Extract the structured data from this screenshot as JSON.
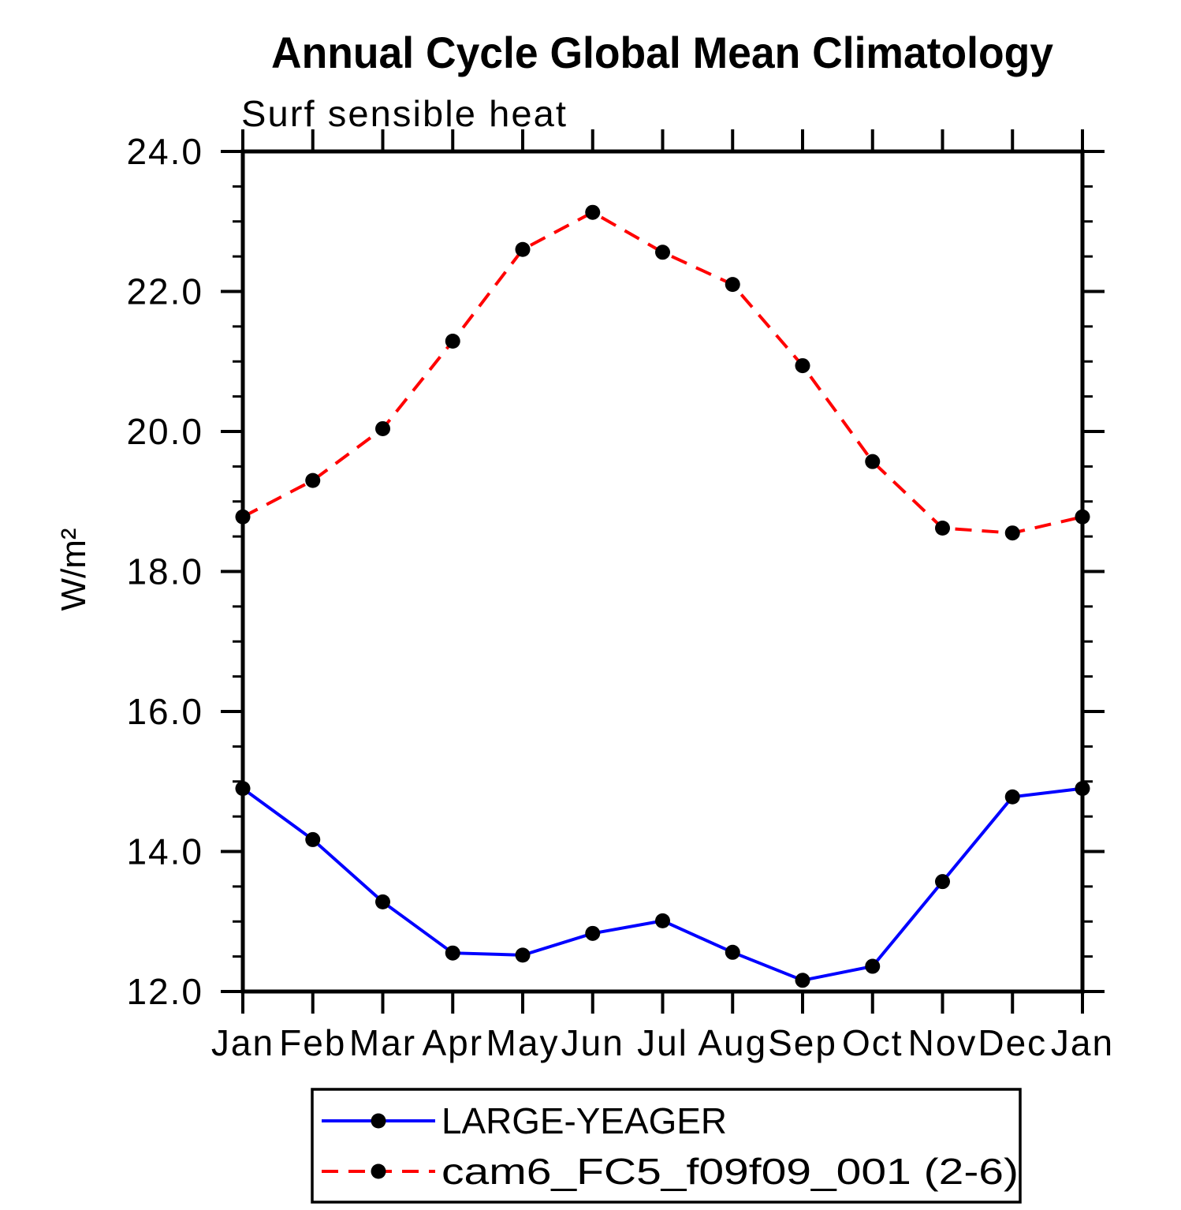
{
  "page": {
    "background_color": "#FFFFFF"
  },
  "chart_data": {
    "type": "line",
    "title": "Annual Cycle Global Mean Climatology",
    "subtitle": "Surf sensible heat",
    "xlabel": "",
    "ylabel": "W/m²",
    "categories": [
      "Jan",
      "Feb",
      "Mar",
      "Apr",
      "May",
      "Jun",
      "Jul",
      "Aug",
      "Sep",
      "Oct",
      "Nov",
      "Dec",
      "Jan"
    ],
    "ylim": [
      12.0,
      24.0
    ],
    "ytick_interval": 2.0,
    "yminor_interval": 0.5,
    "ytick_labels": [
      "12.0",
      "14.0",
      "16.0",
      "18.0",
      "20.0",
      "22.0",
      "24.0"
    ],
    "grid": false,
    "legend_position": "bottom-center",
    "frame_color": "#000000",
    "marker_color": "#000000",
    "marker_shape": "filled-circle",
    "series": [
      {
        "name": "LARGE-YEAGER",
        "color": "#0000FF",
        "line_style": "solid",
        "values": [
          14.9,
          14.17,
          13.28,
          12.55,
          12.52,
          12.83,
          13.01,
          12.56,
          12.16,
          12.36,
          13.57,
          14.78,
          14.9
        ]
      },
      {
        "name": "cam6_FC5_f09f09_001 (2-6)",
        "color": "#FF0000",
        "line_style": "dashed",
        "values": [
          18.78,
          19.3,
          20.04,
          21.29,
          22.6,
          23.13,
          22.56,
          22.1,
          20.94,
          19.57,
          18.62,
          18.55,
          18.78
        ]
      }
    ]
  }
}
